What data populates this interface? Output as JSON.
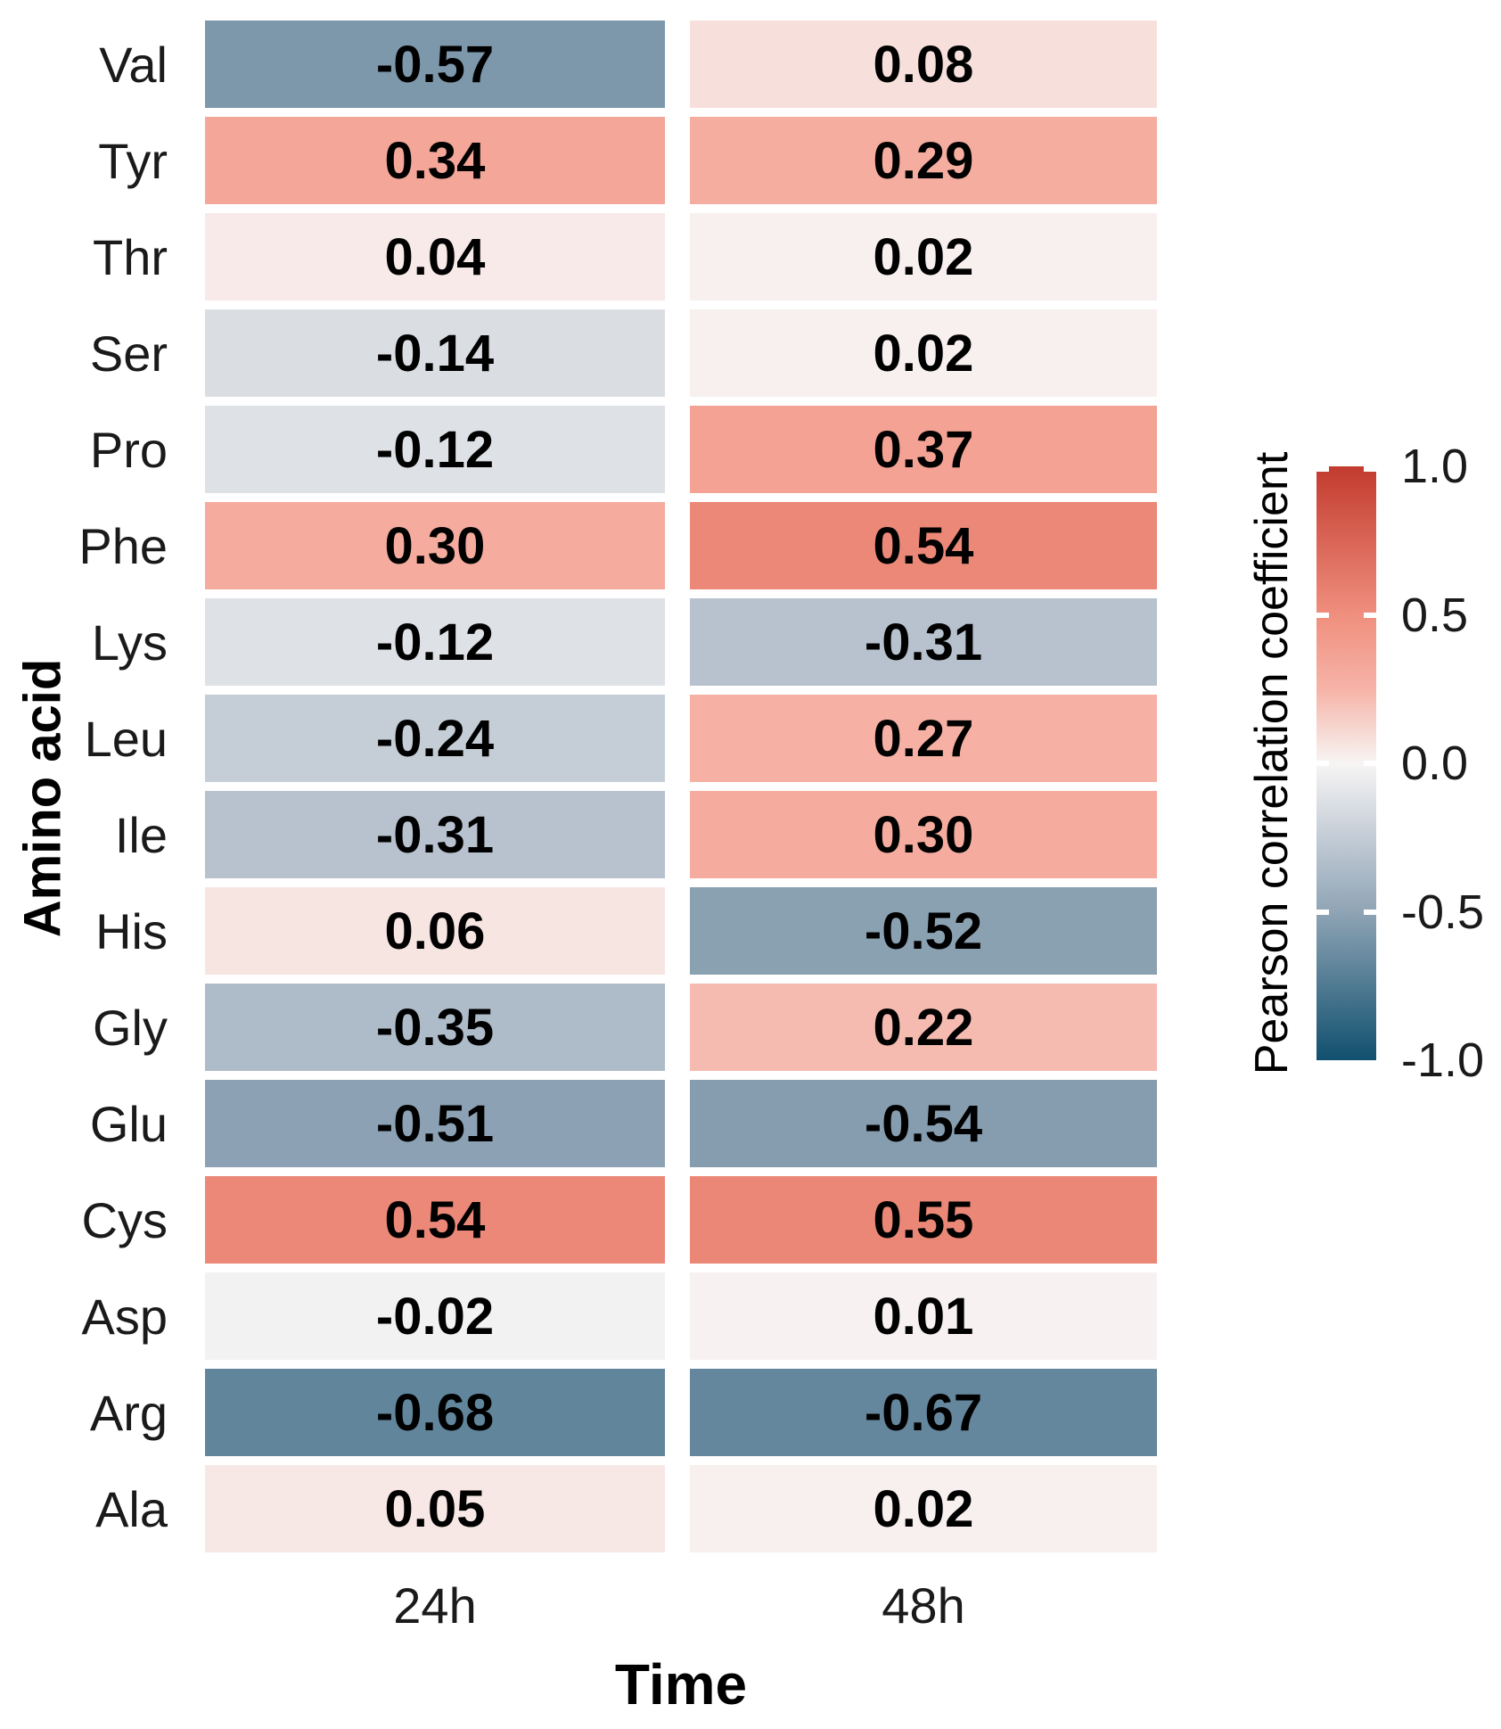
{
  "figure": {
    "background": "#ffffff",
    "x_axis_title": "Time",
    "y_axis_title": "Amino acid"
  },
  "chart_data": {
    "type": "heatmap",
    "title": "",
    "xlabel": "Time",
    "ylabel": "Amino acid",
    "columns": [
      "24h",
      "48h"
    ],
    "rows": [
      "Val",
      "Tyr",
      "Thr",
      "Ser",
      "Pro",
      "Phe",
      "Lys",
      "Leu",
      "Ile",
      "His",
      "Gly",
      "Glu",
      "Cys",
      "Asp",
      "Arg",
      "Ala"
    ],
    "values": [
      [
        -0.57,
        0.08
      ],
      [
        0.34,
        0.29
      ],
      [
        0.04,
        0.02
      ],
      [
        -0.14,
        0.02
      ],
      [
        -0.12,
        0.37
      ],
      [
        0.3,
        0.54
      ],
      [
        -0.12,
        -0.31
      ],
      [
        -0.24,
        0.27
      ],
      [
        -0.31,
        0.3
      ],
      [
        0.06,
        -0.52
      ],
      [
        -0.35,
        0.22
      ],
      [
        -0.51,
        -0.54
      ],
      [
        0.54,
        0.55
      ],
      [
        -0.02,
        0.01
      ],
      [
        -0.68,
        -0.67
      ],
      [
        0.05,
        0.02
      ]
    ],
    "value_decimals": 2,
    "cell_text_color": "#000000",
    "tick_text_color": "#1a1a1a",
    "grid": false,
    "legend": {
      "title": "Pearson correlation coefficient",
      "position": "right",
      "range": [
        -1.0,
        1.0
      ],
      "tick_values": [
        1.0,
        0.5,
        0.0,
        -0.5,
        -1.0
      ],
      "tick_labels": [
        "1.0",
        "0.5",
        "0.0",
        "-0.5",
        "-1.0"
      ]
    },
    "color_scale": {
      "type": "diverging",
      "stops": [
        {
          "v": 1.0,
          "color": "#c23b2e"
        },
        {
          "v": 0.5,
          "color": "#f08f7e"
        },
        {
          "v": 0.25,
          "color": "#f6b3a7"
        },
        {
          "v": 0.0,
          "color": "#f7f5f4"
        },
        {
          "v": -0.25,
          "color": "#c3ccd6"
        },
        {
          "v": -0.5,
          "color": "#8fa4b5"
        },
        {
          "v": -1.0,
          "color": "#10506f"
        }
      ]
    }
  }
}
